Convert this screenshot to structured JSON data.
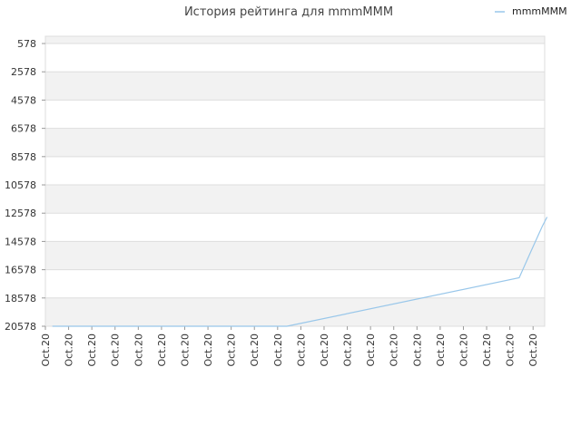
{
  "chart_data": {
    "type": "line",
    "title": "История рейтинга для mmmMMM",
    "xlabel": "",
    "ylabel": "",
    "y_reversed": true,
    "ylim": [
      20578,
      63
    ],
    "y_ticks": [
      578,
      2578,
      4578,
      6578,
      8578,
      10578,
      12578,
      14578,
      16578,
      18578,
      20578
    ],
    "x_tick_labels": [
      "Oct.20",
      "Oct.20",
      "Oct.20",
      "Oct.20",
      "Oct.20",
      "Oct.20",
      "Oct.20",
      "Oct.20",
      "Oct.20",
      "Oct.20",
      "Oct.20",
      "Oct.20",
      "Oct.20",
      "Oct.20",
      "Oct.20",
      "Oct.20",
      "Oct.20",
      "Oct.20",
      "Oct.20",
      "Oct.20",
      "Oct.20",
      "Oct.20"
    ],
    "grid": true,
    "legend": {
      "position": "top-right"
    },
    "series": [
      {
        "name": "mmmMMM",
        "color": "#99c7ea",
        "x": [
          0.3,
          10.4,
          20.4,
          20.9,
          21.4,
          21.6
        ],
        "y": [
          20578,
          20578,
          17150,
          15300,
          13500,
          12850
        ]
      }
    ]
  },
  "colors": {
    "band": "#f2f2f2",
    "grid": "#dddddd",
    "axis": "#cccccc"
  }
}
